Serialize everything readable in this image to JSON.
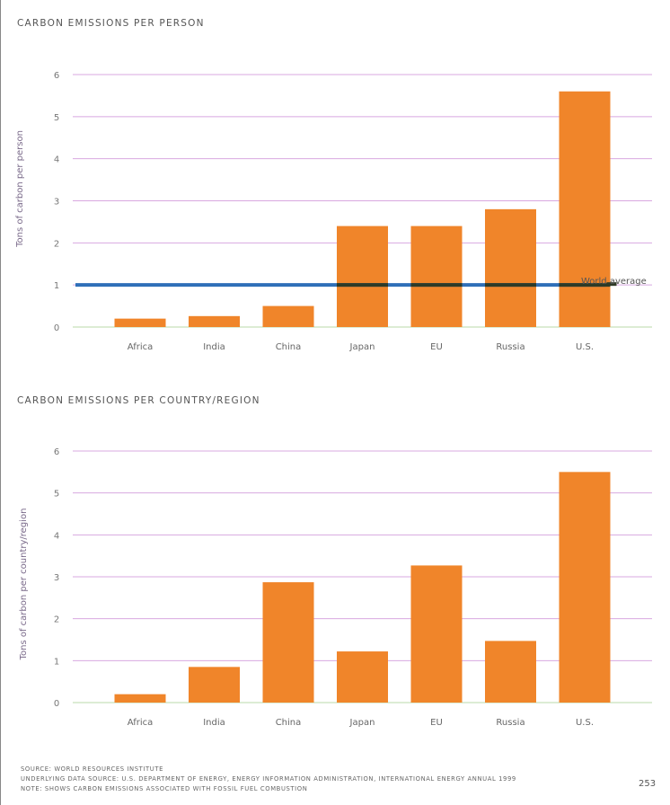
{
  "chart_data": [
    {
      "type": "bar",
      "title": "CARBON EMISSIONS PER PERSON",
      "xlabel": "",
      "ylabel": "Tons of carbon per person",
      "ylim": [
        0,
        6
      ],
      "yticks": [
        "0",
        "1",
        "2",
        "3",
        "4",
        "5",
        "6"
      ],
      "grid": true,
      "categories": [
        "Africa",
        "India",
        "China",
        "Japan",
        "EU",
        "Russia",
        "U.S."
      ],
      "values": [
        0.2,
        0.26,
        0.5,
        2.4,
        2.4,
        2.8,
        5.6
      ],
      "reference_line": {
        "label": "World average",
        "value": 1.0,
        "color": "#2f6fb8"
      },
      "bar_color": "#f0852a"
    },
    {
      "type": "bar",
      "title": "CARBON EMISSIONS PER COUNTRY/REGION",
      "xlabel": "",
      "ylabel": "Tons of carbon per country/region",
      "ylim": [
        0,
        6
      ],
      "yticks": [
        "0",
        "1",
        "2",
        "3",
        "4",
        "5",
        "6"
      ],
      "grid": true,
      "categories": [
        "Africa",
        "India",
        "China",
        "Japan",
        "EU",
        "Russia",
        "U.S."
      ],
      "values": [
        0.2,
        0.85,
        2.87,
        1.22,
        3.27,
        1.47,
        5.5
      ],
      "bar_color": "#f0852a"
    }
  ],
  "footer": {
    "source": "SOURCE: WORLD RESOURCES INSTITUTE",
    "underlying": "UNDERLYING DATA SOURCE: U.S. DEPARTMENT OF ENERGY, ENERGY INFORMATION ADMINISTRATION, INTERNATIONAL ENERGY ANNUAL 1999",
    "note": "NOTE: SHOWS CARBON EMISSIONS ASSOCIATED WITH FOSSIL FUEL COMBUSTION",
    "page_number": "253"
  }
}
